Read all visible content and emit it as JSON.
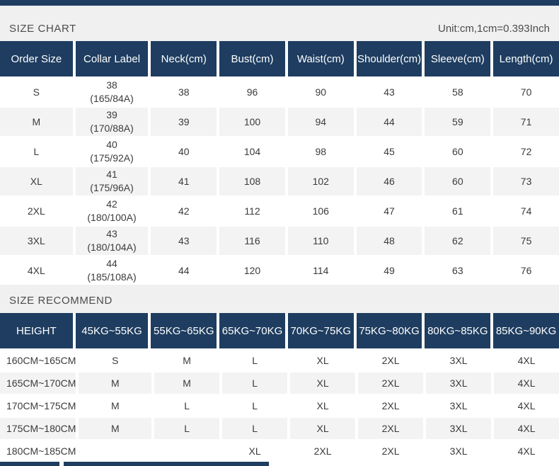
{
  "colors": {
    "navy": "#1e3d60",
    "band_bg": "#f0f0f0",
    "alt_row": "#f3f3f3",
    "text": "#3b3b3b",
    "header_text": "#ffffff"
  },
  "size_chart": {
    "title": "SIZE CHART",
    "unit_note": "Unit:cm,1cm=0.393Inch",
    "columns": [
      "Order Size",
      "Collar Label",
      "Neck(cm)",
      "Bust(cm)",
      "Waist(cm)",
      "Shoulder(cm)",
      "Sleeve(cm)",
      "Length(cm)"
    ],
    "rows": [
      [
        "S",
        [
          "38",
          "(165/84A)"
        ],
        "38",
        "96",
        "90",
        "43",
        "58",
        "70"
      ],
      [
        "M",
        [
          "39",
          "(170/88A)"
        ],
        "39",
        "100",
        "94",
        "44",
        "59",
        "71"
      ],
      [
        "L",
        [
          "40",
          "(175/92A)"
        ],
        "40",
        "104",
        "98",
        "45",
        "60",
        "72"
      ],
      [
        "XL",
        [
          "41",
          "(175/96A)"
        ],
        "41",
        "108",
        "102",
        "46",
        "60",
        "73"
      ],
      [
        "2XL",
        [
          "42",
          "(180/100A)"
        ],
        "42",
        "112",
        "106",
        "47",
        "61",
        "74"
      ],
      [
        "3XL",
        [
          "43",
          "(180/104A)"
        ],
        "43",
        "116",
        "110",
        "48",
        "62",
        "75"
      ],
      [
        "4XL",
        [
          "44",
          "(185/108A)"
        ],
        "44",
        "120",
        "114",
        "49",
        "63",
        "76"
      ]
    ]
  },
  "size_recommend": {
    "title": "SIZE RECOMMEND",
    "columns": [
      "HEIGHT",
      "45KG~55KG",
      "55KG~65KG",
      "65KG~70KG",
      "70KG~75KG",
      "75KG~80KG",
      "80KG~85KG",
      "85KG~90KG"
    ],
    "rows": [
      [
        "160CM~165CM",
        "S",
        "M",
        "L",
        "XL",
        "2XL",
        "3XL",
        "4XL"
      ],
      [
        "165CM~170CM",
        "M",
        "M",
        "L",
        "XL",
        "2XL",
        "3XL",
        "4XL"
      ],
      [
        "170CM~175CM",
        "M",
        "L",
        "L",
        "XL",
        "2XL",
        "3XL",
        "4XL"
      ],
      [
        "175CM~180CM",
        "M",
        "L",
        "L",
        "XL",
        "2XL",
        "3XL",
        "4XL"
      ],
      [
        "180CM~185CM",
        "",
        "",
        "XL",
        "2XL",
        "2XL",
        "3XL",
        "4XL"
      ]
    ]
  }
}
